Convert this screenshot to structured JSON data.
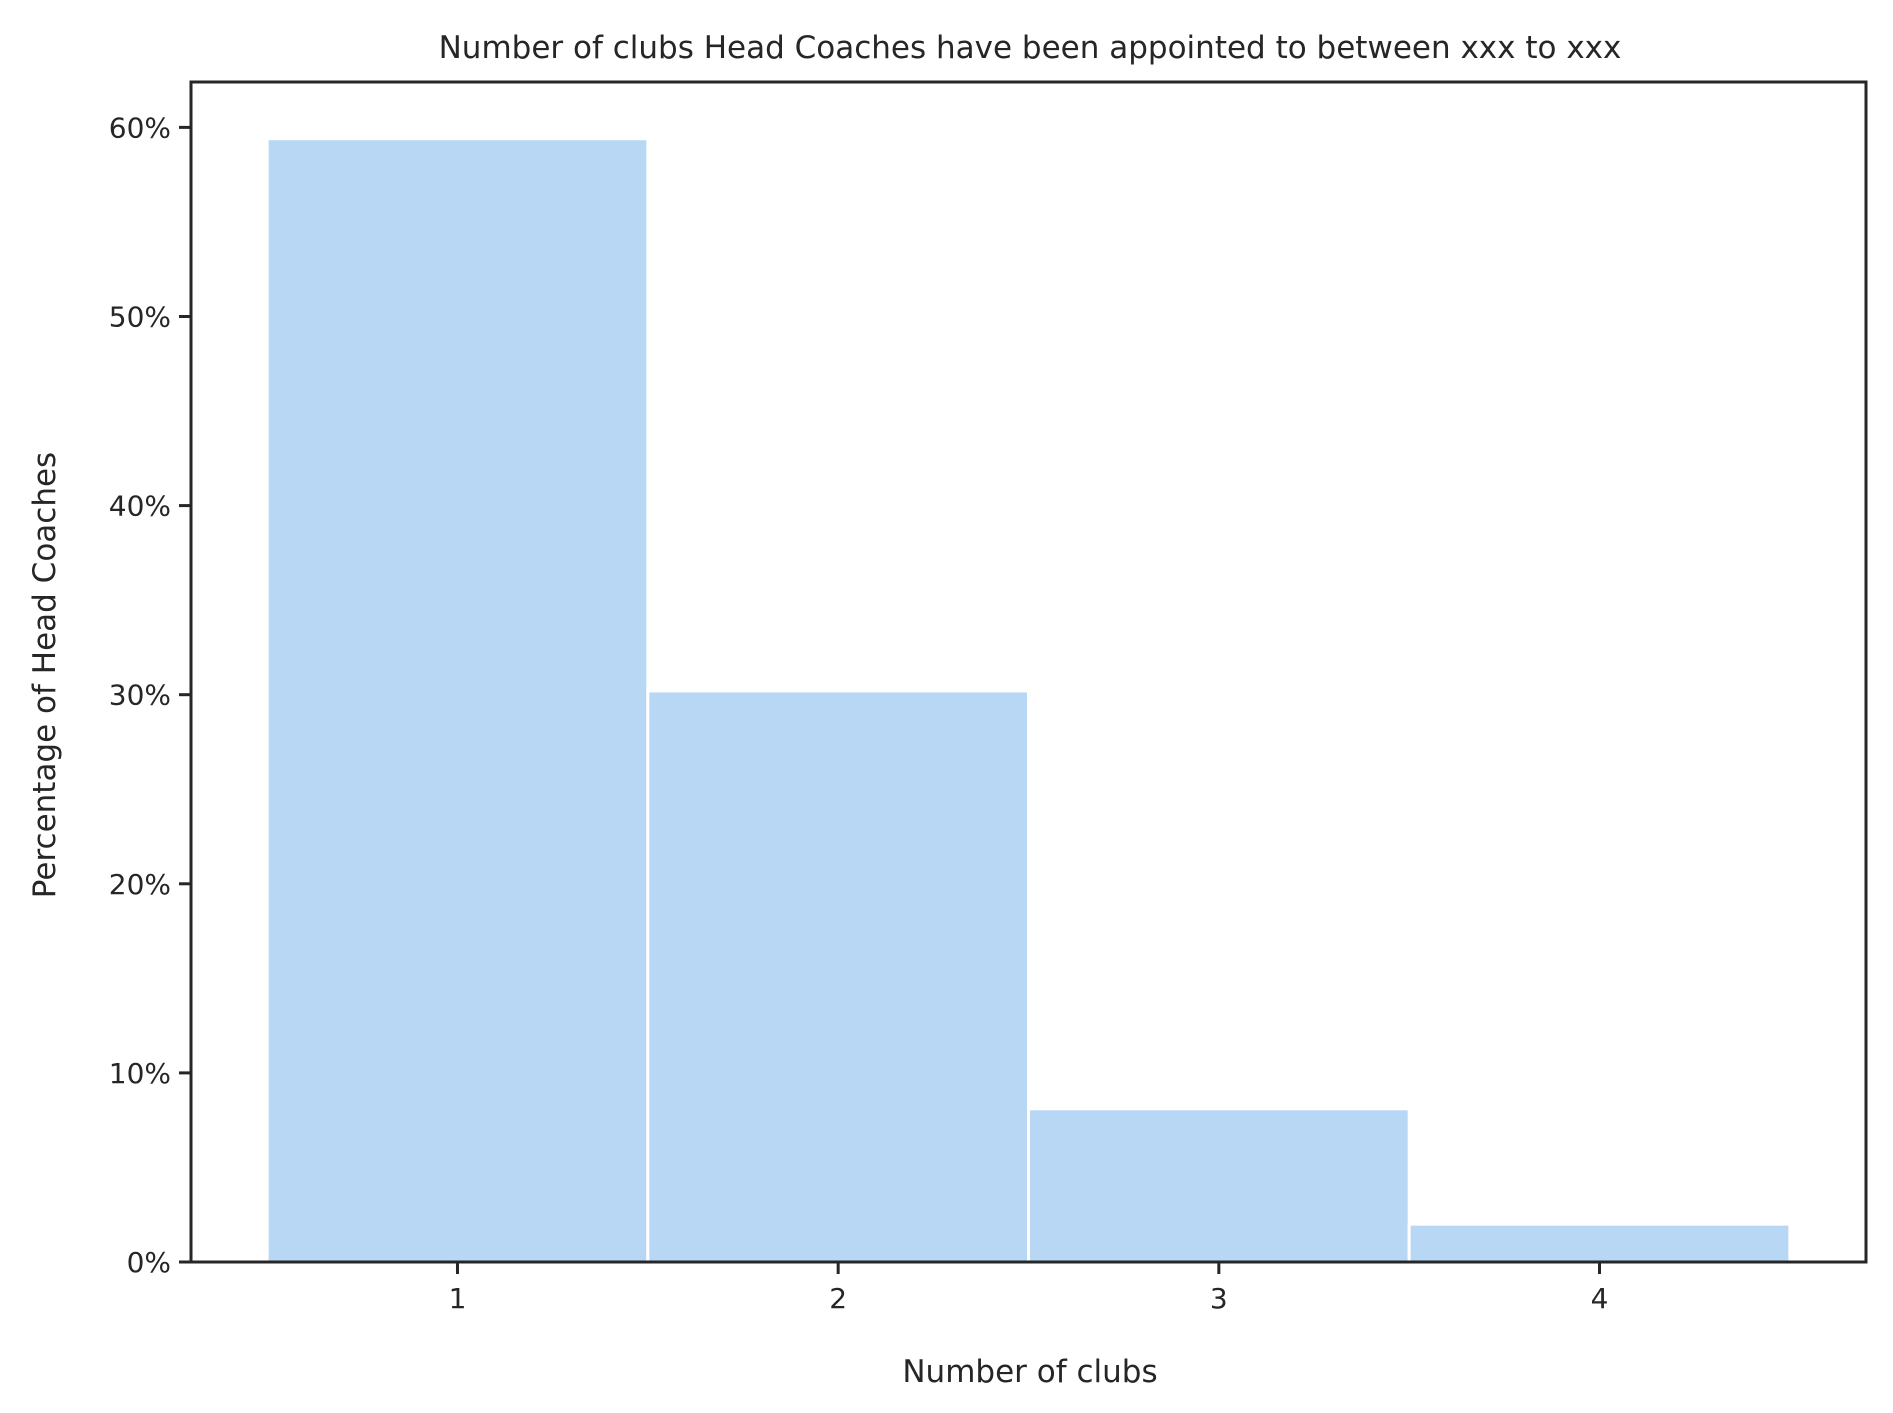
{
  "chart_data": {
    "type": "bar",
    "title": "Number of clubs Head Coaches have been appointed to between xxx to xxx",
    "xlabel": "Number of clubs",
    "ylabel": "Percentage of Head Coaches",
    "categories": [
      1,
      2,
      3,
      4
    ],
    "values": [
      59.4,
      30.2,
      8.1,
      2.0
    ],
    "x_ticks": [
      "1",
      "2",
      "3",
      "4"
    ],
    "y_ticks": [
      {
        "value": 0,
        "label": "0%"
      },
      {
        "value": 10,
        "label": "10%"
      },
      {
        "value": 20,
        "label": "20%"
      },
      {
        "value": 30,
        "label": "30%"
      },
      {
        "value": 40,
        "label": "40%"
      },
      {
        "value": 50,
        "label": "50%"
      },
      {
        "value": 60,
        "label": "60%"
      }
    ],
    "xlim": [
      0.3,
      4.7
    ],
    "ylim": [
      0,
      62.4
    ],
    "grid": false,
    "bar_color": "#b8d7f4"
  }
}
